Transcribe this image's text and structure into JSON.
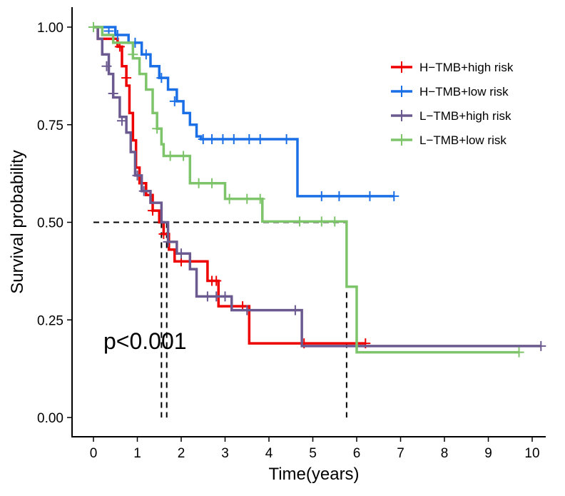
{
  "chart_data": {
    "type": "line",
    "subtype": "kaplan-meier step",
    "xlabel": "Time(years)",
    "ylabel": "Survival probability",
    "xlim": [
      0,
      10
    ],
    "ylim": [
      0,
      1
    ],
    "xticks": [
      "0",
      "1",
      "2",
      "3",
      "4",
      "5",
      "6",
      "7",
      "8",
      "9",
      "10"
    ],
    "yticks": [
      "0.00",
      "0.25",
      "0.50",
      "0.75",
      "1.00"
    ],
    "grid": false,
    "legend_position": "right",
    "annotation": "p<0.001",
    "median_lines": {
      "y": 0.5,
      "x": [
        1.55,
        1.67,
        5.77
      ]
    },
    "series": [
      {
        "name": "H−TMB+high risk",
        "color": "#EE0000",
        "steps": [
          [
            0,
            1
          ],
          [
            0.1,
            0.97
          ],
          [
            0.55,
            0.95
          ],
          [
            0.65,
            0.9
          ],
          [
            0.75,
            0.85
          ],
          [
            0.82,
            0.78
          ],
          [
            0.9,
            0.71
          ],
          [
            0.97,
            0.64
          ],
          [
            1.05,
            0.6
          ],
          [
            1.2,
            0.57
          ],
          [
            1.35,
            0.53
          ],
          [
            1.5,
            0.5
          ],
          [
            1.6,
            0.47
          ],
          [
            1.72,
            0.43
          ],
          [
            1.85,
            0.4
          ],
          [
            2.6,
            0.35
          ],
          [
            2.85,
            0.285
          ],
          [
            3.55,
            0.19
          ],
          [
            6.2,
            0.19
          ]
        ],
        "censor": [
          [
            0.6,
            0.95
          ],
          [
            0.75,
            0.87
          ],
          [
            1.35,
            0.53
          ],
          [
            1.6,
            0.47
          ],
          [
            2.0,
            0.4
          ],
          [
            2.7,
            0.35
          ],
          [
            2.8,
            0.35
          ],
          [
            3.4,
            0.285
          ],
          [
            4.8,
            0.19
          ],
          [
            6.2,
            0.19
          ]
        ]
      },
      {
        "name": "H−TMB+low risk",
        "color": "#1A6FE6",
        "steps": [
          [
            0,
            1
          ],
          [
            0.5,
            0.98
          ],
          [
            0.8,
            0.96
          ],
          [
            1.1,
            0.93
          ],
          [
            1.3,
            0.9
          ],
          [
            1.5,
            0.87
          ],
          [
            1.7,
            0.84
          ],
          [
            1.9,
            0.81
          ],
          [
            2.05,
            0.78
          ],
          [
            2.2,
            0.75
          ],
          [
            2.35,
            0.72
          ],
          [
            2.45,
            0.713
          ],
          [
            4.65,
            0.567
          ],
          [
            6.85,
            0.567
          ]
        ],
        "censor": [
          [
            0.35,
            0.99
          ],
          [
            0.55,
            0.98
          ],
          [
            0.95,
            0.96
          ],
          [
            1.2,
            0.93
          ],
          [
            1.55,
            0.87
          ],
          [
            1.85,
            0.81
          ],
          [
            2.5,
            0.713
          ],
          [
            2.7,
            0.713
          ],
          [
            2.95,
            0.713
          ],
          [
            3.2,
            0.713
          ],
          [
            3.55,
            0.713
          ],
          [
            3.8,
            0.713
          ],
          [
            4.4,
            0.713
          ],
          [
            5.2,
            0.567
          ],
          [
            5.6,
            0.567
          ],
          [
            6.3,
            0.567
          ],
          [
            6.85,
            0.567
          ]
        ]
      },
      {
        "name": "L−TMB+high risk",
        "color": "#6B5A8F",
        "steps": [
          [
            0,
            1
          ],
          [
            0.1,
            0.97
          ],
          [
            0.2,
            0.93
          ],
          [
            0.35,
            0.88
          ],
          [
            0.45,
            0.82
          ],
          [
            0.6,
            0.77
          ],
          [
            0.75,
            0.73
          ],
          [
            0.85,
            0.68
          ],
          [
            0.95,
            0.62
          ],
          [
            1.1,
            0.58
          ],
          [
            1.3,
            0.55
          ],
          [
            1.55,
            0.5
          ],
          [
            1.7,
            0.45
          ],
          [
            1.9,
            0.42
          ],
          [
            2.2,
            0.38
          ],
          [
            2.35,
            0.31
          ],
          [
            3.15,
            0.275
          ],
          [
            4.75,
            0.183
          ],
          [
            10.2,
            0.183
          ]
        ],
        "censor": [
          [
            0.3,
            0.9
          ],
          [
            0.45,
            0.83
          ],
          [
            0.65,
            0.76
          ],
          [
            1.0,
            0.62
          ],
          [
            1.15,
            0.58
          ],
          [
            1.7,
            0.45
          ],
          [
            2.0,
            0.42
          ],
          [
            2.6,
            0.31
          ],
          [
            2.8,
            0.31
          ],
          [
            3.0,
            0.31
          ],
          [
            3.5,
            0.275
          ],
          [
            4.6,
            0.275
          ],
          [
            6.0,
            0.183
          ],
          [
            10.2,
            0.183
          ]
        ]
      },
      {
        "name": "L−TMB+low risk",
        "color": "#7DC46A",
        "steps": [
          [
            0,
            1
          ],
          [
            0.2,
            0.98
          ],
          [
            0.45,
            0.96
          ],
          [
            0.9,
            0.92
          ],
          [
            1.05,
            0.88
          ],
          [
            1.2,
            0.84
          ],
          [
            1.35,
            0.78
          ],
          [
            1.45,
            0.74
          ],
          [
            1.55,
            0.7
          ],
          [
            1.6,
            0.67
          ],
          [
            2.2,
            0.6
          ],
          [
            3.0,
            0.56
          ],
          [
            3.85,
            0.502
          ],
          [
            5.77,
            0.335
          ],
          [
            6.0,
            0.167
          ],
          [
            9.7,
            0.167
          ]
        ],
        "censor": [
          [
            0.0,
            1.0
          ],
          [
            0.9,
            0.93
          ],
          [
            1.45,
            0.74
          ],
          [
            1.75,
            0.67
          ],
          [
            2.05,
            0.67
          ],
          [
            2.4,
            0.6
          ],
          [
            2.7,
            0.6
          ],
          [
            3.1,
            0.56
          ],
          [
            3.5,
            0.56
          ],
          [
            3.8,
            0.56
          ],
          [
            4.7,
            0.502
          ],
          [
            5.2,
            0.502
          ],
          [
            5.5,
            0.502
          ],
          [
            9.7,
            0.167
          ]
        ]
      }
    ]
  }
}
